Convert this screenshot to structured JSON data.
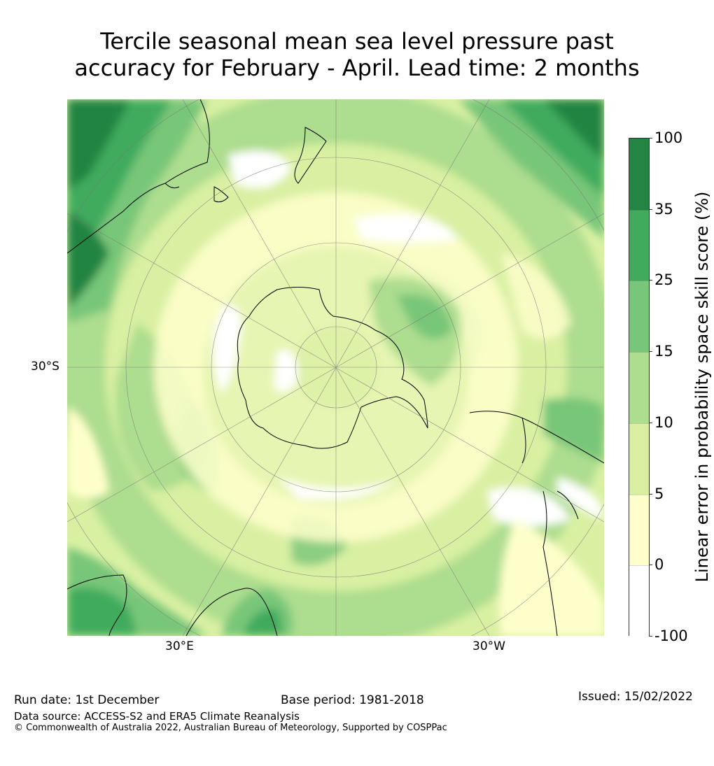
{
  "title_line1": "Tercile seasonal mean sea level pressure past",
  "title_line2": "accuracy for February - April. Lead time: 2 months",
  "map": {
    "projection": "south-polar-stereographic",
    "lat_labels": [
      "30°S"
    ],
    "lon_labels": [
      "30°E",
      "30°W"
    ]
  },
  "colorbar": {
    "label": "Linear error in probability space skill score (%)",
    "ticks": [
      "100",
      "35",
      "25",
      "15",
      "10",
      "5",
      "0",
      "-100"
    ],
    "bins": [
      {
        "range": [
          35,
          100
        ],
        "color": "#238443"
      },
      {
        "range": [
          25,
          35
        ],
        "color": "#41ab5d"
      },
      {
        "range": [
          15,
          25
        ],
        "color": "#78c679"
      },
      {
        "range": [
          10,
          15
        ],
        "color": "#addd8e"
      },
      {
        "range": [
          5,
          10
        ],
        "color": "#d9f0a3"
      },
      {
        "range": [
          0,
          5
        ],
        "color": "#ffffcc"
      },
      {
        "range": [
          -100,
          0
        ],
        "color": "#ffffff"
      }
    ]
  },
  "footer": {
    "run_date": "Run date: 1st December",
    "base_period": "Base period: 1981-2018",
    "issued": "Issued: 15/02/2022",
    "data_source": "Data source: ACCESS-S2 and ERA5 Climate Reanalysis",
    "copyright": "© Commonwealth of Australia 2022, Australian Bureau of Meteorology, Supported by COSPPac"
  }
}
